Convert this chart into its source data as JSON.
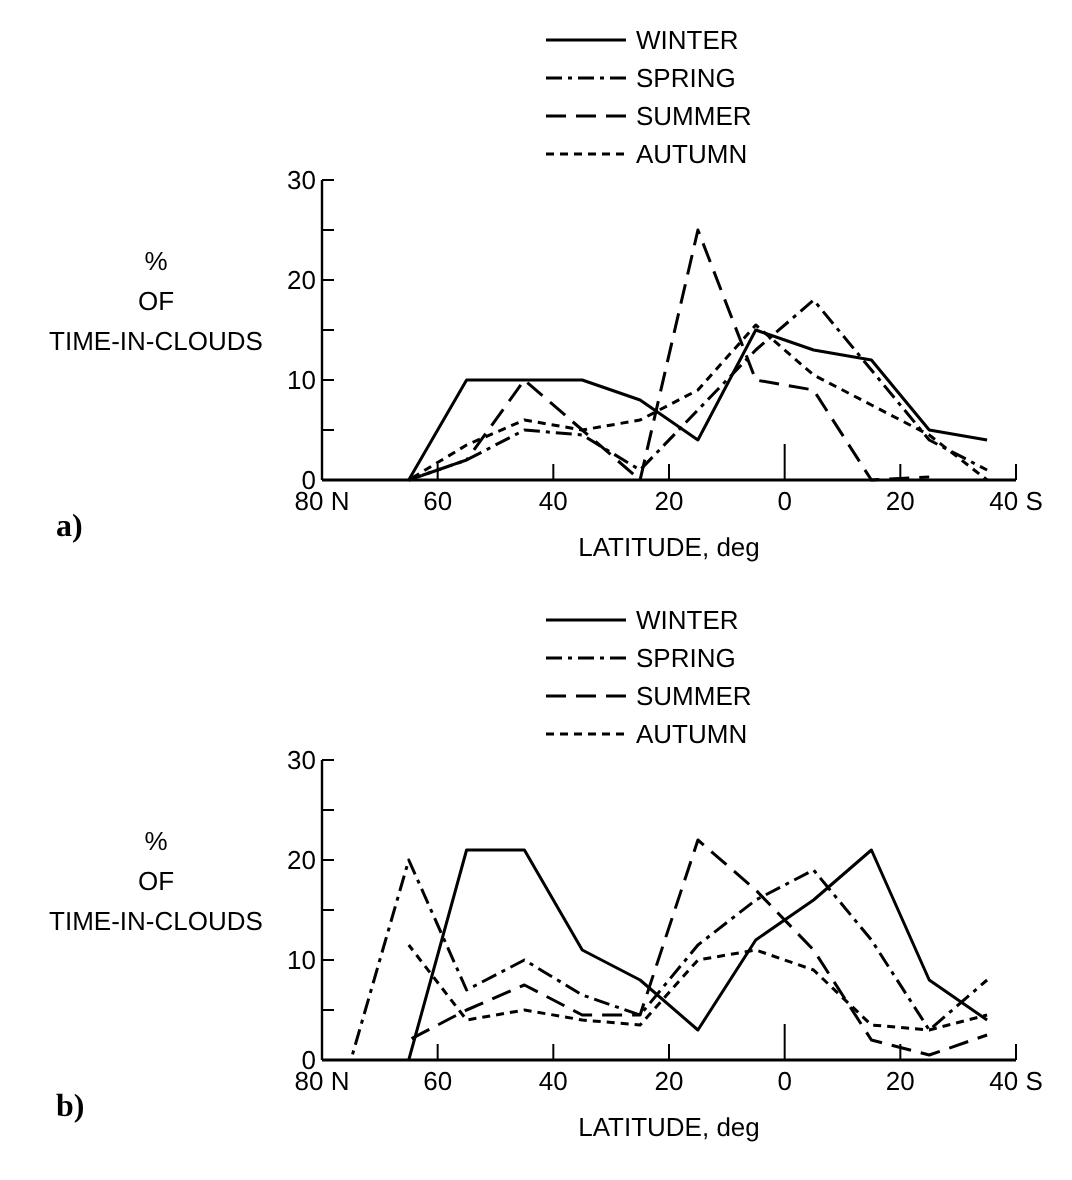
{
  "chart_data": [
    {
      "type": "line",
      "annotations": [
        "a)"
      ],
      "xlabel": "LATITUDE, deg",
      "ylabel": "%\nOF\nTIME-IN-CLOUDS",
      "legend": "top",
      "grid": false,
      "marker": "none",
      "xlim": [
        80,
        -40
      ],
      "xticks": [
        {
          "value": 80,
          "label": "80 N"
        },
        60,
        40,
        20,
        0,
        {
          "value": -20,
          "label": "20"
        },
        {
          "value": -40,
          "label": "40 S"
        }
      ],
      "ylim": [
        0,
        30
      ],
      "yticks": [
        0,
        {
          "value": 5,
          "label": null
        },
        10,
        {
          "value": 15,
          "label": null
        },
        20,
        {
          "value": 25,
          "label": null
        },
        30
      ],
      "x": [
        65,
        55,
        45,
        35,
        25,
        15,
        5,
        -5,
        -15,
        -25,
        -35
      ],
      "series": [
        {
          "name": "WINTER",
          "color": "#000000",
          "line_style": "solid",
          "values": [
            0,
            10,
            10,
            10,
            8,
            4,
            15,
            13,
            12,
            5,
            4
          ]
        },
        {
          "name": "SPRING",
          "color": "#000000",
          "line_style": "dashdot",
          "values": [
            0,
            2,
            5,
            4.5,
            1,
            7,
            13,
            18,
            11,
            4,
            1
          ]
        },
        {
          "name": "SUMMER",
          "color": "#000000",
          "line_style": "longdash",
          "values": [
            0,
            2,
            10,
            5,
            0,
            25,
            10,
            9,
            0,
            0.3,
            null
          ]
        },
        {
          "name": "AUTUMN",
          "color": "#000000",
          "line_style": "dashed",
          "values": [
            0,
            3.5,
            6,
            5,
            6,
            9,
            15.5,
            10.5,
            7.5,
            4.5,
            0
          ]
        }
      ]
    },
    {
      "type": "line",
      "annotations": [
        "b)"
      ],
      "xlabel": "LATITUDE, deg",
      "ylabel": "%\nOF\nTIME-IN-CLOUDS",
      "legend": "top",
      "grid": false,
      "marker": "none",
      "xlim": [
        80,
        -40
      ],
      "xticks": [
        {
          "value": 80,
          "label": "80 N"
        },
        60,
        40,
        20,
        0,
        {
          "value": -20,
          "label": "20"
        },
        {
          "value": -40,
          "label": "40 S"
        }
      ],
      "ylim": [
        0,
        30
      ],
      "yticks": [
        0,
        {
          "value": 5,
          "label": null
        },
        10,
        {
          "value": 15,
          "label": null
        },
        20,
        {
          "value": 25,
          "label": null
        },
        30
      ],
      "series": [
        {
          "name": "WINTER",
          "color": "#000000",
          "line_style": "solid",
          "x": [
            65,
            55,
            45,
            35,
            25,
            15,
            5,
            -5,
            -15,
            -25,
            -35
          ],
          "values": [
            0,
            21,
            21,
            11,
            8,
            3,
            12,
            16,
            21,
            8,
            4
          ]
        },
        {
          "name": "SPRING",
          "color": "#000000",
          "line_style": "dashdot",
          "x": [
            75,
            65,
            55,
            45,
            35,
            25,
            15,
            5,
            -5,
            -15,
            -25,
            -35
          ],
          "values": [
            0,
            20,
            7,
            10,
            6.5,
            4.5,
            11.5,
            16,
            19,
            12,
            3,
            8
          ]
        },
        {
          "name": "SUMMER",
          "color": "#000000",
          "line_style": "longdash",
          "x": [
            65,
            55,
            45,
            35,
            25,
            15,
            5,
            -5,
            -15,
            -25,
            -35
          ],
          "values": [
            2,
            5,
            7.5,
            4.5,
            4.5,
            22,
            17,
            11,
            2,
            0.5,
            2.5
          ]
        },
        {
          "name": "AUTUMN",
          "color": "#000000",
          "line_style": "dashed",
          "x": [
            65,
            55,
            45,
            35,
            25,
            15,
            5,
            -5,
            -15,
            -25,
            -35
          ],
          "values": [
            11.5,
            4,
            5,
            4,
            3.5,
            10,
            11,
            9,
            3.5,
            3,
            4.5
          ]
        }
      ]
    }
  ]
}
